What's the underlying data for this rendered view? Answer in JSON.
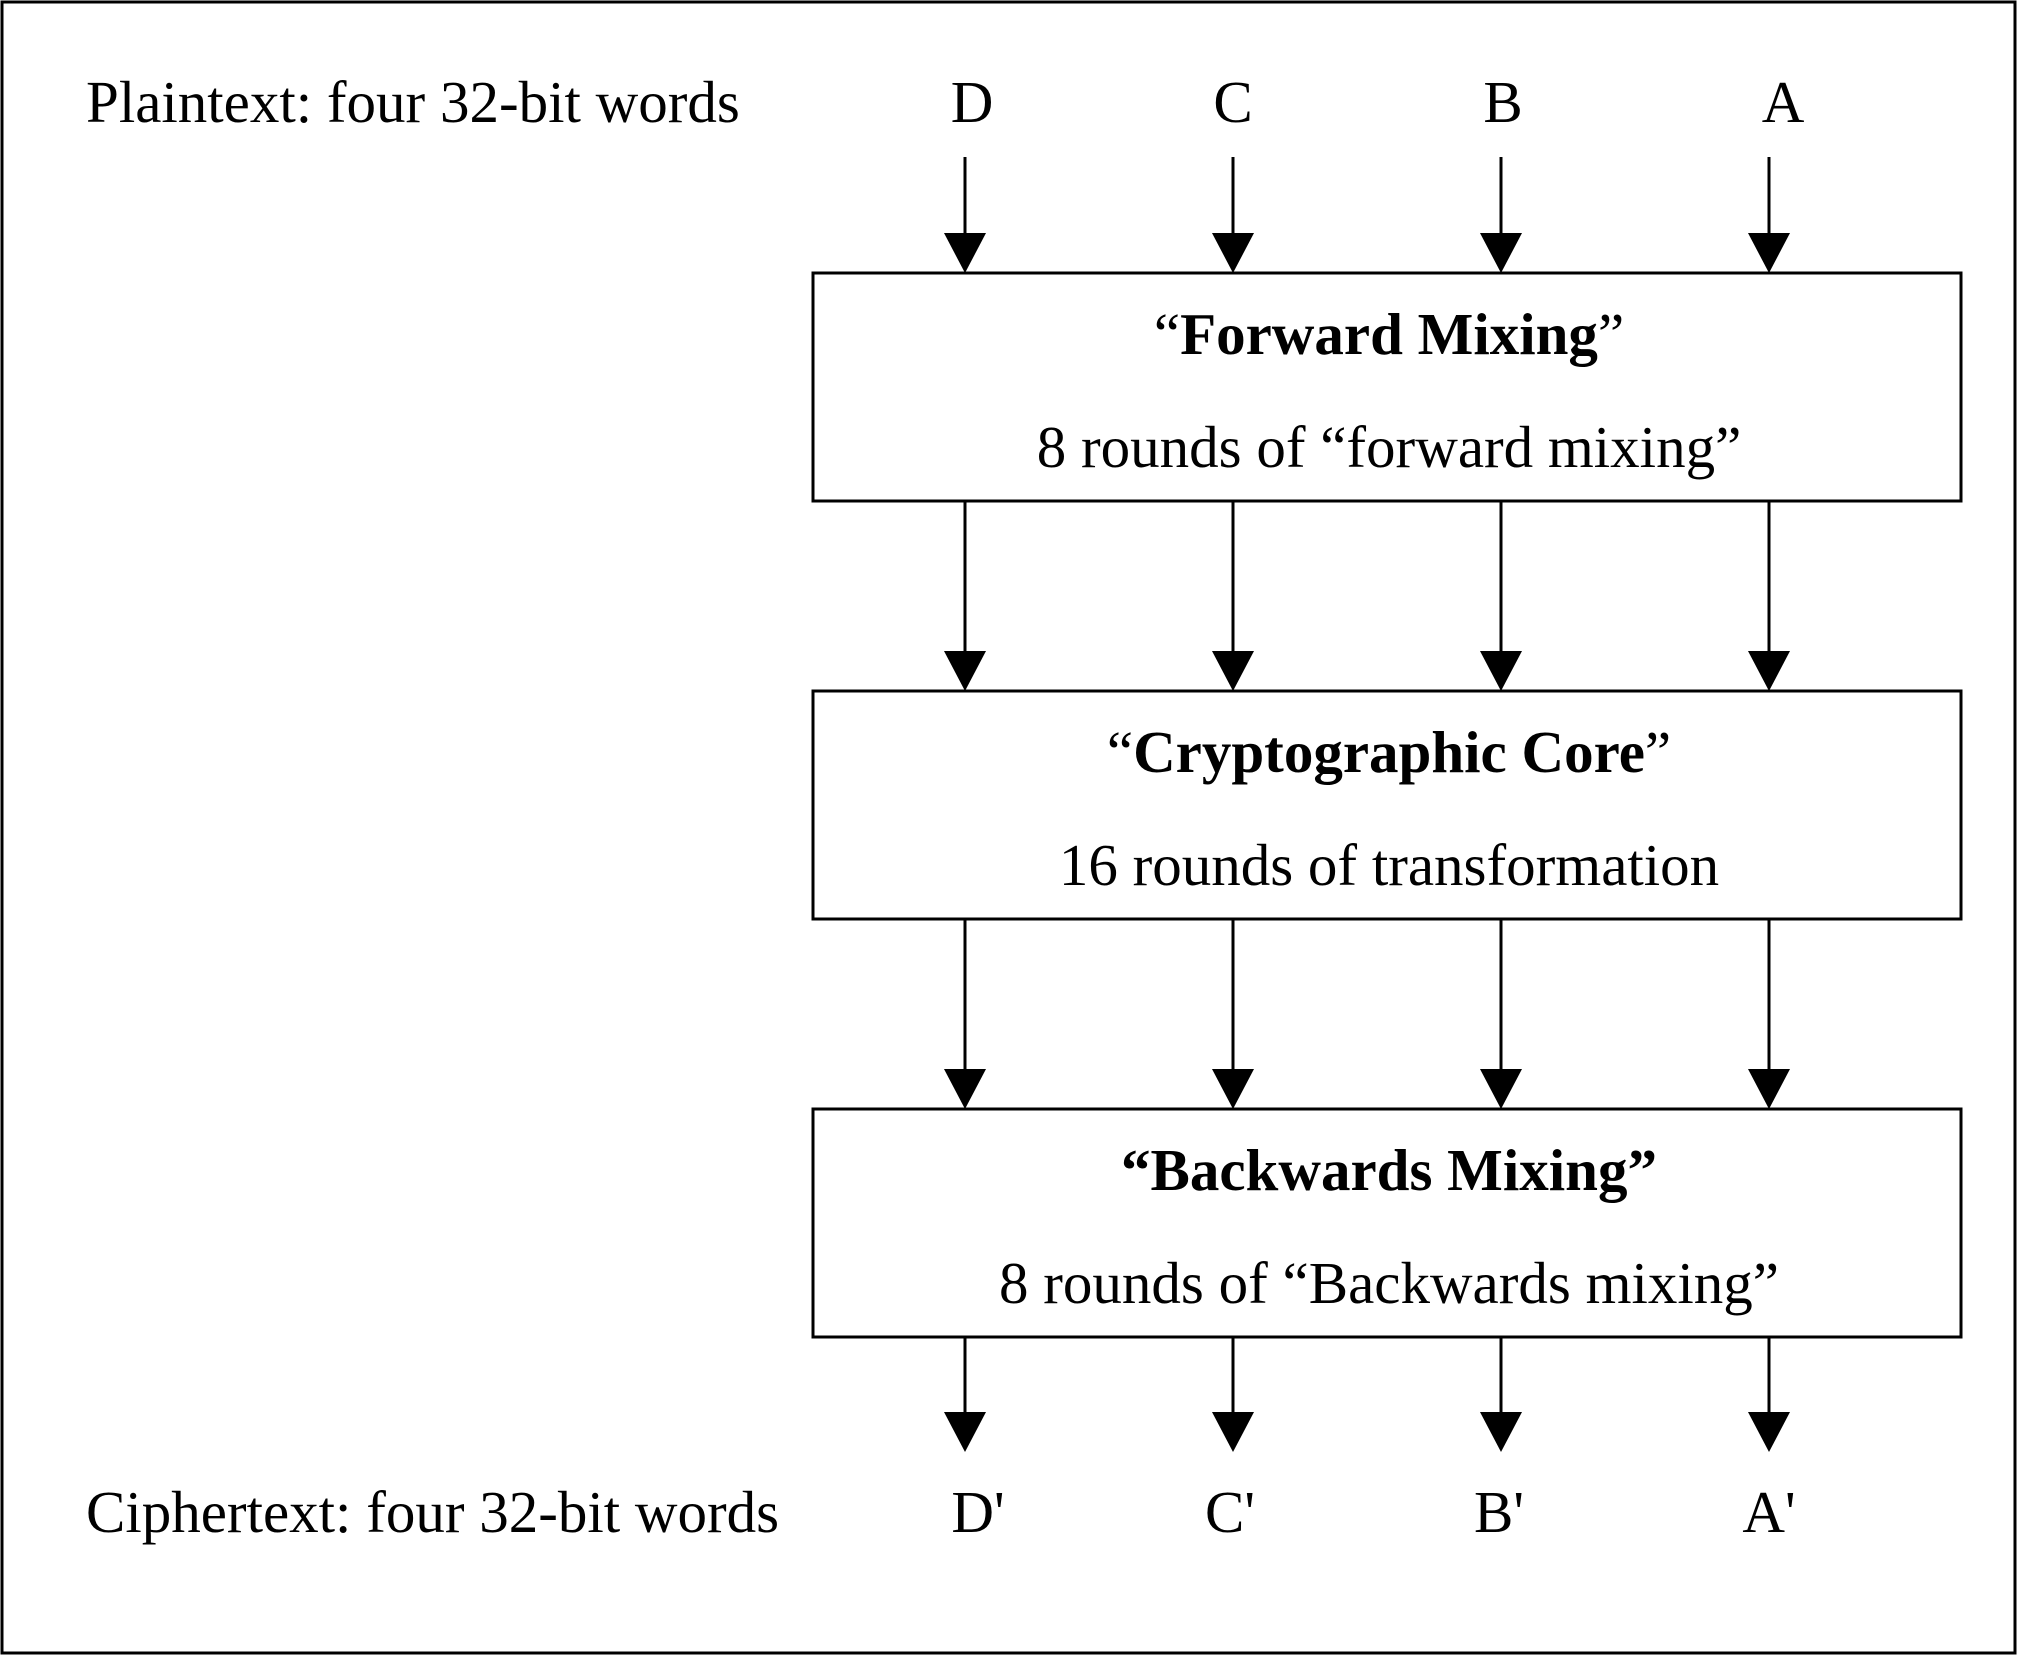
{
  "plaintext": {
    "label": "Plaintext: four 32-bit words",
    "words": [
      "D",
      "C",
      "B",
      "A"
    ]
  },
  "ciphertext": {
    "label": "Ciphertext: four 32-bit words",
    "words": [
      "D'",
      "C'",
      "B'",
      "A'"
    ]
  },
  "stages": [
    {
      "title_prefix": "“",
      "title": "Forward Mixing",
      "title_suffix": "”",
      "subtitle": "8 rounds of “forward mixing”"
    },
    {
      "title_prefix": "“",
      "title": "Cryptographic Core",
      "title_suffix": "”",
      "subtitle": "16 rounds of transformation"
    },
    {
      "title_prefix": "",
      "title": "“Backwards Mixing”",
      "title_suffix": "",
      "subtitle": "8 rounds of “Backwards mixing”"
    }
  ],
  "colors": {
    "stroke": "#000000",
    "background": "#ffffff"
  }
}
